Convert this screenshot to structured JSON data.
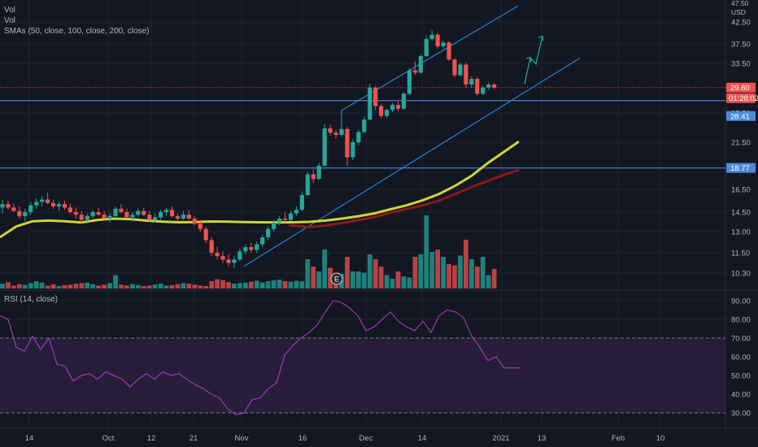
{
  "legend": {
    "line1": "Vol",
    "line2": "Vol",
    "sma": "SMAs (50, close, 100, close, 200, close)",
    "rsi": "RSI (14, close)"
  },
  "colors": {
    "up": "#26a69a",
    "down": "#ef5350",
    "sma50": "#cdd43a",
    "sma100": "#8b1a1a",
    "channel": "#2196f3",
    "hline": "#4c8ad8",
    "rsi": "#b03fc8",
    "rsi_band": "#2a1e3e",
    "arrow": "#26a69a",
    "marker": "#e8e8e8"
  },
  "price_axis": {
    "top_label": "47.50",
    "currency": "USD",
    "ticks": [
      42.5,
      37.5,
      33.5,
      25.5,
      21.5,
      16.5,
      14.5,
      13.0,
      11.5,
      10.3
    ],
    "tick_labels": [
      "42.50",
      "37.50",
      "33.50",
      "25.50",
      "21.50",
      "16.50",
      "14.50",
      "13.00",
      "11.50",
      "10.30"
    ]
  },
  "price_tags": {
    "last": {
      "label": "29.60",
      "value": 29.6,
      "color": "#ef5350"
    },
    "countdown": {
      "label": "01:28:02",
      "color": "#ef5350"
    },
    "line_a": {
      "label": "28.41",
      "value": 28.41,
      "color": "#4c8ad8"
    },
    "line_b": {
      "label": "18.77",
      "value": 18.77,
      "color": "#4c8ad8"
    }
  },
  "rsi_axis": {
    "ticks": [
      90,
      80,
      70,
      60,
      50,
      40,
      30
    ],
    "tick_labels": [
      "90.00",
      "80.00",
      "70.00",
      "60.00",
      "50.00",
      "40.00",
      "30.00"
    ],
    "band": [
      30,
      70
    ]
  },
  "time_axis": {
    "labels": [
      "14",
      "Oct",
      "12",
      "21",
      "Nov",
      "16",
      "Dec",
      "14",
      "2021",
      "13",
      "Feb",
      "10"
    ]
  },
  "earnings_marker": "E",
  "chart_data": {
    "type": "candlestick",
    "candles": [
      [
        14.9,
        15.6,
        14.4,
        15.2
      ],
      [
        15.2,
        15.5,
        14.7,
        14.9
      ],
      [
        14.9,
        15.3,
        14.5,
        14.6
      ],
      [
        14.6,
        15.0,
        14.0,
        14.2
      ],
      [
        14.2,
        14.8,
        13.8,
        14.5
      ],
      [
        14.5,
        15.4,
        14.3,
        15.1
      ],
      [
        15.1,
        15.7,
        14.8,
        15.4
      ],
      [
        15.4,
        15.9,
        15.0,
        15.6
      ],
      [
        15.6,
        16.2,
        15.2,
        15.3
      ],
      [
        15.3,
        15.6,
        14.8,
        15.0
      ],
      [
        15.0,
        15.4,
        14.6,
        15.2
      ],
      [
        15.2,
        15.5,
        14.7,
        14.9
      ],
      [
        14.9,
        15.2,
        14.4,
        14.5
      ],
      [
        14.5,
        14.9,
        14.0,
        14.3
      ],
      [
        14.3,
        14.6,
        13.6,
        13.9
      ],
      [
        13.9,
        14.4,
        13.6,
        14.2
      ],
      [
        14.2,
        14.7,
        14.0,
        14.5
      ],
      [
        14.5,
        14.9,
        14.2,
        14.3
      ],
      [
        14.3,
        14.6,
        13.9,
        14.0
      ],
      [
        14.0,
        14.4,
        13.7,
        14.2
      ],
      [
        14.2,
        15.0,
        14.0,
        14.8
      ],
      [
        14.8,
        15.2,
        14.4,
        14.5
      ],
      [
        14.5,
        14.8,
        14.0,
        14.1
      ],
      [
        14.1,
        14.5,
        13.8,
        14.3
      ],
      [
        14.3,
        14.8,
        14.1,
        14.6
      ],
      [
        14.6,
        14.9,
        14.2,
        14.3
      ],
      [
        14.3,
        14.6,
        13.8,
        13.9
      ],
      [
        13.9,
        14.4,
        13.7,
        14.1
      ],
      [
        14.1,
        14.7,
        13.9,
        14.5
      ],
      [
        14.5,
        14.9,
        14.2,
        14.7
      ],
      [
        14.7,
        15.0,
        14.1,
        14.2
      ],
      [
        14.2,
        14.4,
        13.8,
        14.0
      ],
      [
        14.0,
        14.6,
        13.9,
        14.3
      ],
      [
        14.3,
        14.7,
        13.9,
        14.0
      ],
      [
        14.0,
        14.2,
        13.5,
        13.6
      ],
      [
        13.6,
        13.9,
        13.0,
        13.2
      ],
      [
        13.2,
        13.4,
        12.2,
        12.4
      ],
      [
        12.4,
        12.6,
        11.3,
        11.5
      ],
      [
        11.5,
        11.9,
        11.1,
        11.3
      ],
      [
        11.3,
        11.6,
        10.9,
        11.1
      ],
      [
        11.1,
        11.4,
        10.7,
        10.9
      ],
      [
        10.9,
        11.3,
        10.6,
        11.1
      ],
      [
        11.1,
        11.8,
        11.0,
        11.6
      ],
      [
        11.6,
        12.1,
        11.4,
        11.9
      ],
      [
        11.9,
        12.2,
        11.5,
        11.7
      ],
      [
        11.7,
        12.3,
        11.5,
        12.1
      ],
      [
        12.1,
        12.8,
        11.9,
        12.6
      ],
      [
        12.6,
        13.4,
        12.4,
        13.2
      ],
      [
        13.2,
        13.9,
        13.0,
        13.7
      ],
      [
        13.7,
        14.2,
        13.5,
        14.0
      ],
      [
        14.0,
        14.5,
        13.7,
        13.9
      ],
      [
        13.9,
        14.6,
        13.8,
        14.4
      ],
      [
        14.4,
        15.0,
        14.2,
        14.7
      ],
      [
        14.7,
        16.3,
        14.6,
        16.0
      ],
      [
        16.0,
        18.4,
        15.9,
        18.1
      ],
      [
        18.1,
        18.6,
        17.2,
        17.6
      ],
      [
        17.6,
        19.3,
        17.5,
        19.0
      ],
      [
        19.0,
        24.0,
        18.9,
        23.4
      ],
      [
        23.4,
        23.9,
        22.4,
        22.8
      ],
      [
        22.8,
        23.2,
        22.0,
        22.5
      ],
      [
        22.5,
        23.8,
        22.3,
        23.3
      ],
      [
        23.3,
        23.6,
        19.0,
        19.9
      ],
      [
        19.9,
        21.9,
        19.6,
        21.5
      ],
      [
        21.5,
        23.2,
        21.2,
        22.9
      ],
      [
        22.9,
        25.0,
        22.7,
        24.6
      ],
      [
        24.6,
        30.2,
        24.5,
        29.6
      ],
      [
        29.6,
        29.9,
        25.9,
        26.6
      ],
      [
        26.6,
        27.0,
        24.8,
        25.1
      ],
      [
        25.1,
        26.2,
        24.8,
        26.0
      ],
      [
        26.0,
        27.1,
        25.6,
        26.8
      ],
      [
        26.8,
        27.3,
        25.8,
        26.2
      ],
      [
        26.2,
        28.8,
        26.0,
        28.6
      ],
      [
        28.6,
        32.7,
        28.4,
        32.4
      ],
      [
        32.4,
        33.9,
        31.6,
        32.0
      ],
      [
        32.0,
        35.3,
        31.8,
        35.0
      ],
      [
        35.0,
        39.4,
        34.8,
        38.6
      ],
      [
        38.6,
        40.5,
        38.2,
        39.6
      ],
      [
        39.6,
        40.0,
        36.6,
        37.0
      ],
      [
        37.0,
        38.2,
        36.6,
        37.8
      ],
      [
        37.8,
        38.1,
        34.0,
        34.3
      ],
      [
        34.3,
        34.6,
        31.3,
        31.6
      ],
      [
        31.6,
        33.6,
        31.4,
        33.3
      ],
      [
        33.3,
        33.6,
        29.6,
        30.1
      ],
      [
        30.1,
        31.4,
        29.6,
        31.0
      ],
      [
        31.0,
        31.3,
        28.3,
        28.6
      ],
      [
        28.6,
        29.9,
        28.4,
        29.6
      ],
      [
        29.6,
        30.4,
        29.2,
        30.1
      ],
      [
        30.1,
        30.3,
        29.4,
        29.6
      ]
    ],
    "volume": [
      0.2,
      0.26,
      0.12,
      0.18,
      0.15,
      0.22,
      0.3,
      0.24,
      0.12,
      0.18,
      0.1,
      0.14,
      0.16,
      0.2,
      0.22,
      0.24,
      0.18,
      0.12,
      0.16,
      0.22,
      0.55,
      0.16,
      0.12,
      0.18,
      0.14,
      0.1,
      0.12,
      0.16,
      0.2,
      0.12,
      0.14,
      0.18,
      0.22,
      0.2,
      0.16,
      0.12,
      0.1,
      0.3,
      0.38,
      0.35,
      0.26,
      0.2,
      0.22,
      0.24,
      0.28,
      0.32,
      0.25,
      0.3,
      0.34,
      0.36,
      0.3,
      0.28,
      0.32,
      0.3,
      1.2,
      0.9,
      0.7,
      1.6,
      0.85,
      0.4,
      0.6,
      1.3,
      0.7,
      0.7,
      0.65,
      1.4,
      1.2,
      0.9,
      0.55,
      0.4,
      0.7,
      0.5,
      0.45,
      1.3,
      1.4,
      3.0,
      1.5,
      1.6,
      1.3,
      1.0,
      0.95,
      1.35,
      2.0,
      1.2,
      0.9,
      1.3,
      0.55,
      0.8,
      0.95,
      0.4
    ],
    "sma50": [
      [
        0,
        12.6
      ],
      [
        20,
        13.4
      ],
      [
        40,
        13.8
      ],
      [
        60,
        13.85
      ],
      [
        80,
        13.8
      ],
      [
        100,
        13.7
      ],
      [
        120,
        13.9
      ],
      [
        140,
        14.0
      ],
      [
        160,
        13.96
      ],
      [
        180,
        13.85
      ],
      [
        200,
        13.76
      ],
      [
        220,
        13.72
      ],
      [
        240,
        13.74
      ],
      [
        260,
        13.78
      ],
      [
        280,
        13.76
      ],
      [
        300,
        13.74
      ],
      [
        320,
        13.72
      ],
      [
        340,
        13.71
      ],
      [
        360,
        13.72
      ],
      [
        380,
        13.75
      ],
      [
        400,
        13.85
      ],
      [
        420,
        14.0
      ],
      [
        440,
        14.18
      ],
      [
        460,
        14.4
      ],
      [
        480,
        14.75
      ],
      [
        500,
        15.1
      ],
      [
        520,
        15.55
      ],
      [
        540,
        16.1
      ],
      [
        560,
        16.9
      ],
      [
        580,
        17.95
      ],
      [
        600,
        19.3
      ],
      [
        620,
        20.5
      ],
      [
        638,
        21.6
      ]
    ],
    "sma100": [
      [
        355,
        13.5
      ],
      [
        380,
        13.35
      ],
      [
        400,
        13.47
      ],
      [
        420,
        13.65
      ],
      [
        440,
        13.88
      ],
      [
        460,
        14.12
      ],
      [
        480,
        14.45
      ],
      [
        500,
        14.78
      ],
      [
        520,
        15.1
      ],
      [
        540,
        15.5
      ],
      [
        560,
        16.1
      ],
      [
        580,
        16.76
      ],
      [
        600,
        17.4
      ],
      [
        620,
        18.05
      ],
      [
        638,
        18.55
      ]
    ],
    "channel_upper": [
      [
        420,
        25.9
      ],
      [
        637,
        46.8
      ]
    ],
    "channel_lower": [
      [
        300,
        10.7
      ],
      [
        713,
        34.6
      ]
    ],
    "arrow_path": [
      [
        645,
        30.2
      ],
      [
        652,
        34.7
      ],
      [
        659,
        33.4
      ],
      [
        667,
        39.3
      ]
    ],
    "rsi": [
      [
        0,
        82
      ],
      [
        10,
        80
      ],
      [
        20,
        65
      ],
      [
        30,
        63
      ],
      [
        40,
        71
      ],
      [
        50,
        64
      ],
      [
        60,
        70
      ],
      [
        70,
        56
      ],
      [
        80,
        55
      ],
      [
        90,
        47
      ],
      [
        100,
        50
      ],
      [
        110,
        51
      ],
      [
        120,
        48
      ],
      [
        130,
        52
      ],
      [
        140,
        50
      ],
      [
        150,
        48
      ],
      [
        160,
        44
      ],
      [
        170,
        48
      ],
      [
        180,
        51
      ],
      [
        190,
        48
      ],
      [
        200,
        52
      ],
      [
        210,
        50
      ],
      [
        220,
        51
      ],
      [
        230,
        48
      ],
      [
        240,
        45
      ],
      [
        250,
        43
      ],
      [
        260,
        40
      ],
      [
        270,
        38
      ],
      [
        280,
        32
      ],
      [
        290,
        29
      ],
      [
        300,
        30
      ],
      [
        310,
        37
      ],
      [
        320,
        38
      ],
      [
        330,
        43
      ],
      [
        340,
        46
      ],
      [
        350,
        61
      ],
      [
        360,
        66
      ],
      [
        370,
        70
      ],
      [
        380,
        73
      ],
      [
        390,
        77
      ],
      [
        400,
        84
      ],
      [
        410,
        90
      ],
      [
        420,
        89
      ],
      [
        430,
        86
      ],
      [
        440,
        82
      ],
      [
        450,
        74
      ],
      [
        460,
        76
      ],
      [
        470,
        80
      ],
      [
        480,
        84
      ],
      [
        490,
        79
      ],
      [
        500,
        76
      ],
      [
        510,
        74
      ],
      [
        520,
        79
      ],
      [
        530,
        73
      ],
      [
        540,
        82
      ],
      [
        550,
        85
      ],
      [
        560,
        84
      ],
      [
        570,
        81
      ],
      [
        580,
        71
      ],
      [
        590,
        65
      ],
      [
        600,
        58
      ],
      [
        610,
        60
      ],
      [
        620,
        54
      ],
      [
        630,
        54
      ],
      [
        640,
        54
      ]
    ]
  }
}
